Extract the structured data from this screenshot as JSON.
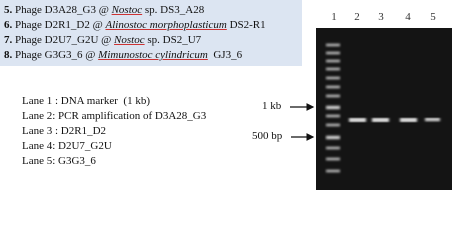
{
  "legend": [
    {
      "number": "5.",
      "before": " Phage D3A28_G3 @ ",
      "species": "Nostoc",
      "after": " sp. DS3_A28"
    },
    {
      "number": "6.",
      "before": " Phage D2R1_D2 @ ",
      "species": "Alinostoc morphoplasticum",
      "after": " DS2-R1"
    },
    {
      "number": "7.",
      "before": " Phage D2U7_G2U @ ",
      "species": "Nostoc",
      "after": " sp. DS2_U7"
    },
    {
      "number": "8.",
      "before": " Phage G3G3_6 @ ",
      "species": "Mimunostoc cylindricum",
      "after": "  GJ3_6"
    }
  ],
  "lanes": [
    "Lane 1 : DNA marker  (1 kb)",
    "Lane 2: PCR amplification of D3A28_G3",
    "Lane 3 : D2R1_D2",
    "Lane 4: D2U7_G2U",
    "Lane 5: G3G3_6"
  ],
  "markers": [
    "1 kb",
    "500 bp"
  ],
  "lane_numbers": [
    "1",
    "2",
    "3",
    "4",
    "5"
  ]
}
